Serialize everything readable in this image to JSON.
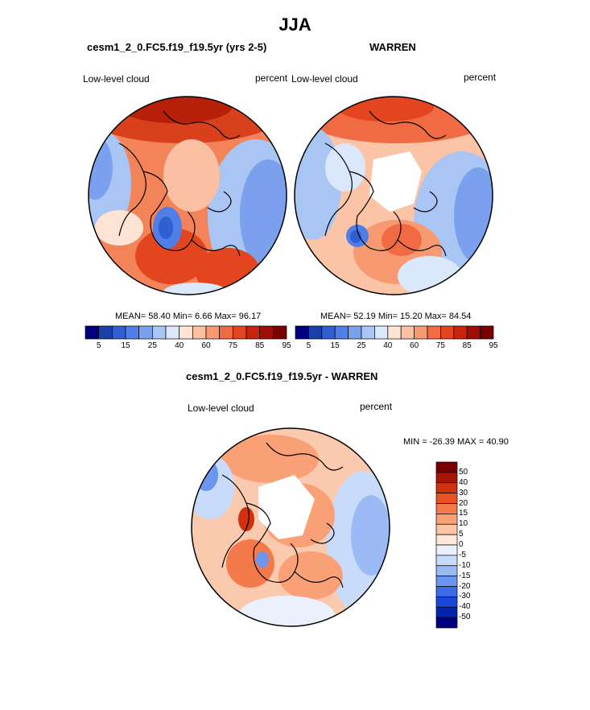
{
  "main_title": "JJA",
  "colors": {
    "abs_scale": [
      "#00007f",
      "#1a3fa6",
      "#2f5fd0",
      "#4f7fe6",
      "#7aa0ee",
      "#a8c5f4",
      "#dbe8fb",
      "#fde3d3",
      "#fbbfa1",
      "#f79a72",
      "#f06a44",
      "#e3461f",
      "#c7230d",
      "#a10d05",
      "#7a0000"
    ],
    "diff_scale": [
      "#00007f",
      "#0026b0",
      "#1a48d8",
      "#3b6de8",
      "#6b95ef",
      "#9cbaf5",
      "#c9dbfa",
      "#eaf1fd",
      "#fde7d9",
      "#fcc6a6",
      "#f9a077",
      "#f57a4b",
      "#ea5222",
      "#cf320c",
      "#a81504",
      "#7a0000"
    ],
    "land_outline": "#000000"
  },
  "panels": [
    {
      "id": "model",
      "title": "cesm1_2_0.FC5.f19_f19.5yr (yrs 2-5)",
      "left_label": "Low-level cloud",
      "right_label": "percent",
      "stats": "MEAN=  58.40  Min=   6.66  Max=  96.17",
      "tick_labels": [
        "5",
        "15",
        "25",
        "40",
        "60",
        "75",
        "85",
        "95"
      ],
      "dominant_fill": "#f3845a"
    },
    {
      "id": "obs",
      "title": "WARREN",
      "left_label": "Low-level cloud",
      "right_label": "percent",
      "stats": "MEAN=  52.19  Min=  15.20  Max=  84.54",
      "tick_labels": [
        "5",
        "15",
        "25",
        "40",
        "60",
        "75",
        "85",
        "95"
      ],
      "dominant_fill": "#fbc4a6"
    },
    {
      "id": "diff",
      "title": "cesm1_2_0.FC5.f19_f19.5yr - WARREN",
      "left_label": "Low-level cloud",
      "right_label": "percent",
      "stats": "MIN = -26.39 MAX =  40.90",
      "tick_labels": [
        "50",
        "40",
        "30",
        "20",
        "15",
        "10",
        "5",
        "0",
        "-5",
        "-10",
        "-15",
        "-20",
        "-30",
        "-40",
        "-50"
      ],
      "dominant_fill": "#fbc9ad"
    }
  ],
  "chart_data": [
    {
      "type": "heatmap",
      "projection": "north-polar-stereographic",
      "title": "cesm1_2_0.FC5.f19_f19.5yr (yrs 2-5)",
      "variable": "Low-level cloud",
      "units": "percent",
      "mean": 58.4,
      "min": 6.66,
      "max": 96.17,
      "contour_levels": [
        5,
        10,
        15,
        20,
        25,
        30,
        40,
        50,
        60,
        70,
        75,
        80,
        85,
        90,
        95
      ],
      "colorbar_tick_labels": [
        "5",
        "15",
        "25",
        "40",
        "60",
        "75",
        "85",
        "95"
      ],
      "legend": "bottom"
    },
    {
      "type": "heatmap",
      "projection": "north-polar-stereographic",
      "title": "WARREN",
      "variable": "Low-level cloud",
      "units": "percent",
      "mean": 52.19,
      "min": 15.2,
      "max": 84.54,
      "contour_levels": [
        5,
        10,
        15,
        20,
        25,
        30,
        40,
        50,
        60,
        70,
        75,
        80,
        85,
        90,
        95
      ],
      "colorbar_tick_labels": [
        "5",
        "15",
        "25",
        "40",
        "60",
        "75",
        "85",
        "95"
      ],
      "legend": "bottom"
    },
    {
      "type": "heatmap",
      "projection": "north-polar-stereographic",
      "title": "cesm1_2_0.FC5.f19_f19.5yr - WARREN",
      "variable": "Low-level cloud",
      "units": "percent",
      "min": -26.39,
      "max": 40.9,
      "contour_levels": [
        -50,
        -40,
        -30,
        -20,
        -15,
        -10,
        -5,
        0,
        5,
        10,
        15,
        20,
        30,
        40,
        50
      ],
      "colorbar_tick_labels": [
        "50",
        "40",
        "30",
        "20",
        "15",
        "10",
        "5",
        "0",
        "-5",
        "-10",
        "-15",
        "-20",
        "-30",
        "-40",
        "-50"
      ],
      "legend": "right"
    }
  ]
}
